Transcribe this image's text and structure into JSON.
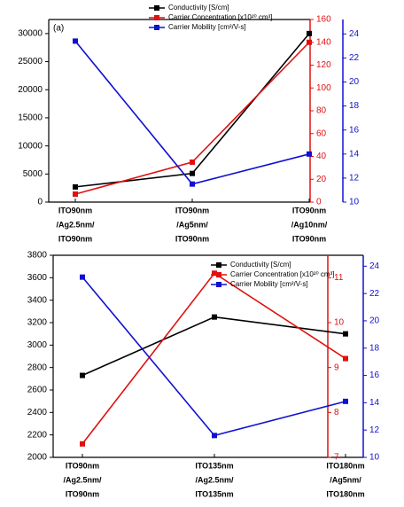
{
  "chart_data": [
    {
      "type": "line",
      "annotation": "(a)",
      "categories": [
        [
          "ITO90nm",
          "/Ag2.5nm/",
          "ITO90nm"
        ],
        [
          "ITO90nm",
          "/Ag5nm/",
          "ITO90nm"
        ],
        [
          "ITO90nm",
          "/Ag10nm/",
          "ITO90nm"
        ]
      ],
      "series": [
        {
          "name": "Conductivity [S/cm]",
          "color": "#000000",
          "axis": "y",
          "values": [
            2700,
            5100,
            30000
          ]
        },
        {
          "name": "Carrier Concentration [x10²⁰ cm³]",
          "color": "#e01010",
          "axis": "y2",
          "values": [
            7,
            35,
            140
          ]
        },
        {
          "name": "Carrier Mobility [cm²/V-s]",
          "color": "#1010d0",
          "axis": "y3",
          "values": [
            23.4,
            11.5,
            14
          ]
        }
      ],
      "ylim": [
        0,
        32500
      ],
      "yticks": [
        0,
        5000,
        10000,
        15000,
        20000,
        25000,
        30000
      ],
      "y2lim": [
        0,
        160
      ],
      "y2ticks": [
        0,
        20,
        40,
        60,
        80,
        100,
        120,
        140,
        160
      ],
      "y3lim": [
        10,
        25.2
      ],
      "y3ticks": [
        10,
        12,
        14,
        16,
        18,
        20,
        22,
        24
      ]
    },
    {
      "type": "line",
      "categories": [
        [
          "ITO90nm",
          "/Ag2.5nm/",
          "ITO90nm"
        ],
        [
          "ITO135nm",
          "/Ag2.5nm/",
          "ITO135nm"
        ],
        [
          "ITO180nm",
          "/Ag5nm/",
          "ITO180nm"
        ]
      ],
      "series": [
        {
          "name": "Conductivity [S/cm]",
          "color": "#000000",
          "axis": "y",
          "values": [
            2730,
            3250,
            3100
          ]
        },
        {
          "name": "Carrier Concentration [x10²⁰ cm³]",
          "color": "#e01010",
          "axis": "y2",
          "values": [
            7.3,
            11.1,
            9.2
          ]
        },
        {
          "name": "Carrier Mobility [cm²/V-s]",
          "color": "#1010d0",
          "axis": "y3",
          "values": [
            23.2,
            11.6,
            14.1
          ]
        }
      ],
      "ylim": [
        2000,
        3800
      ],
      "yticks": [
        2000,
        2200,
        2400,
        2600,
        2800,
        3000,
        3200,
        3400,
        3600,
        3800
      ],
      "y2lim": [
        7,
        11.5
      ],
      "y2ticks": [
        7,
        8,
        9,
        10,
        11
      ],
      "y3lim": [
        10,
        24.8
      ],
      "y3ticks": [
        10,
        12,
        14,
        16,
        18,
        20,
        22,
        24
      ]
    }
  ]
}
